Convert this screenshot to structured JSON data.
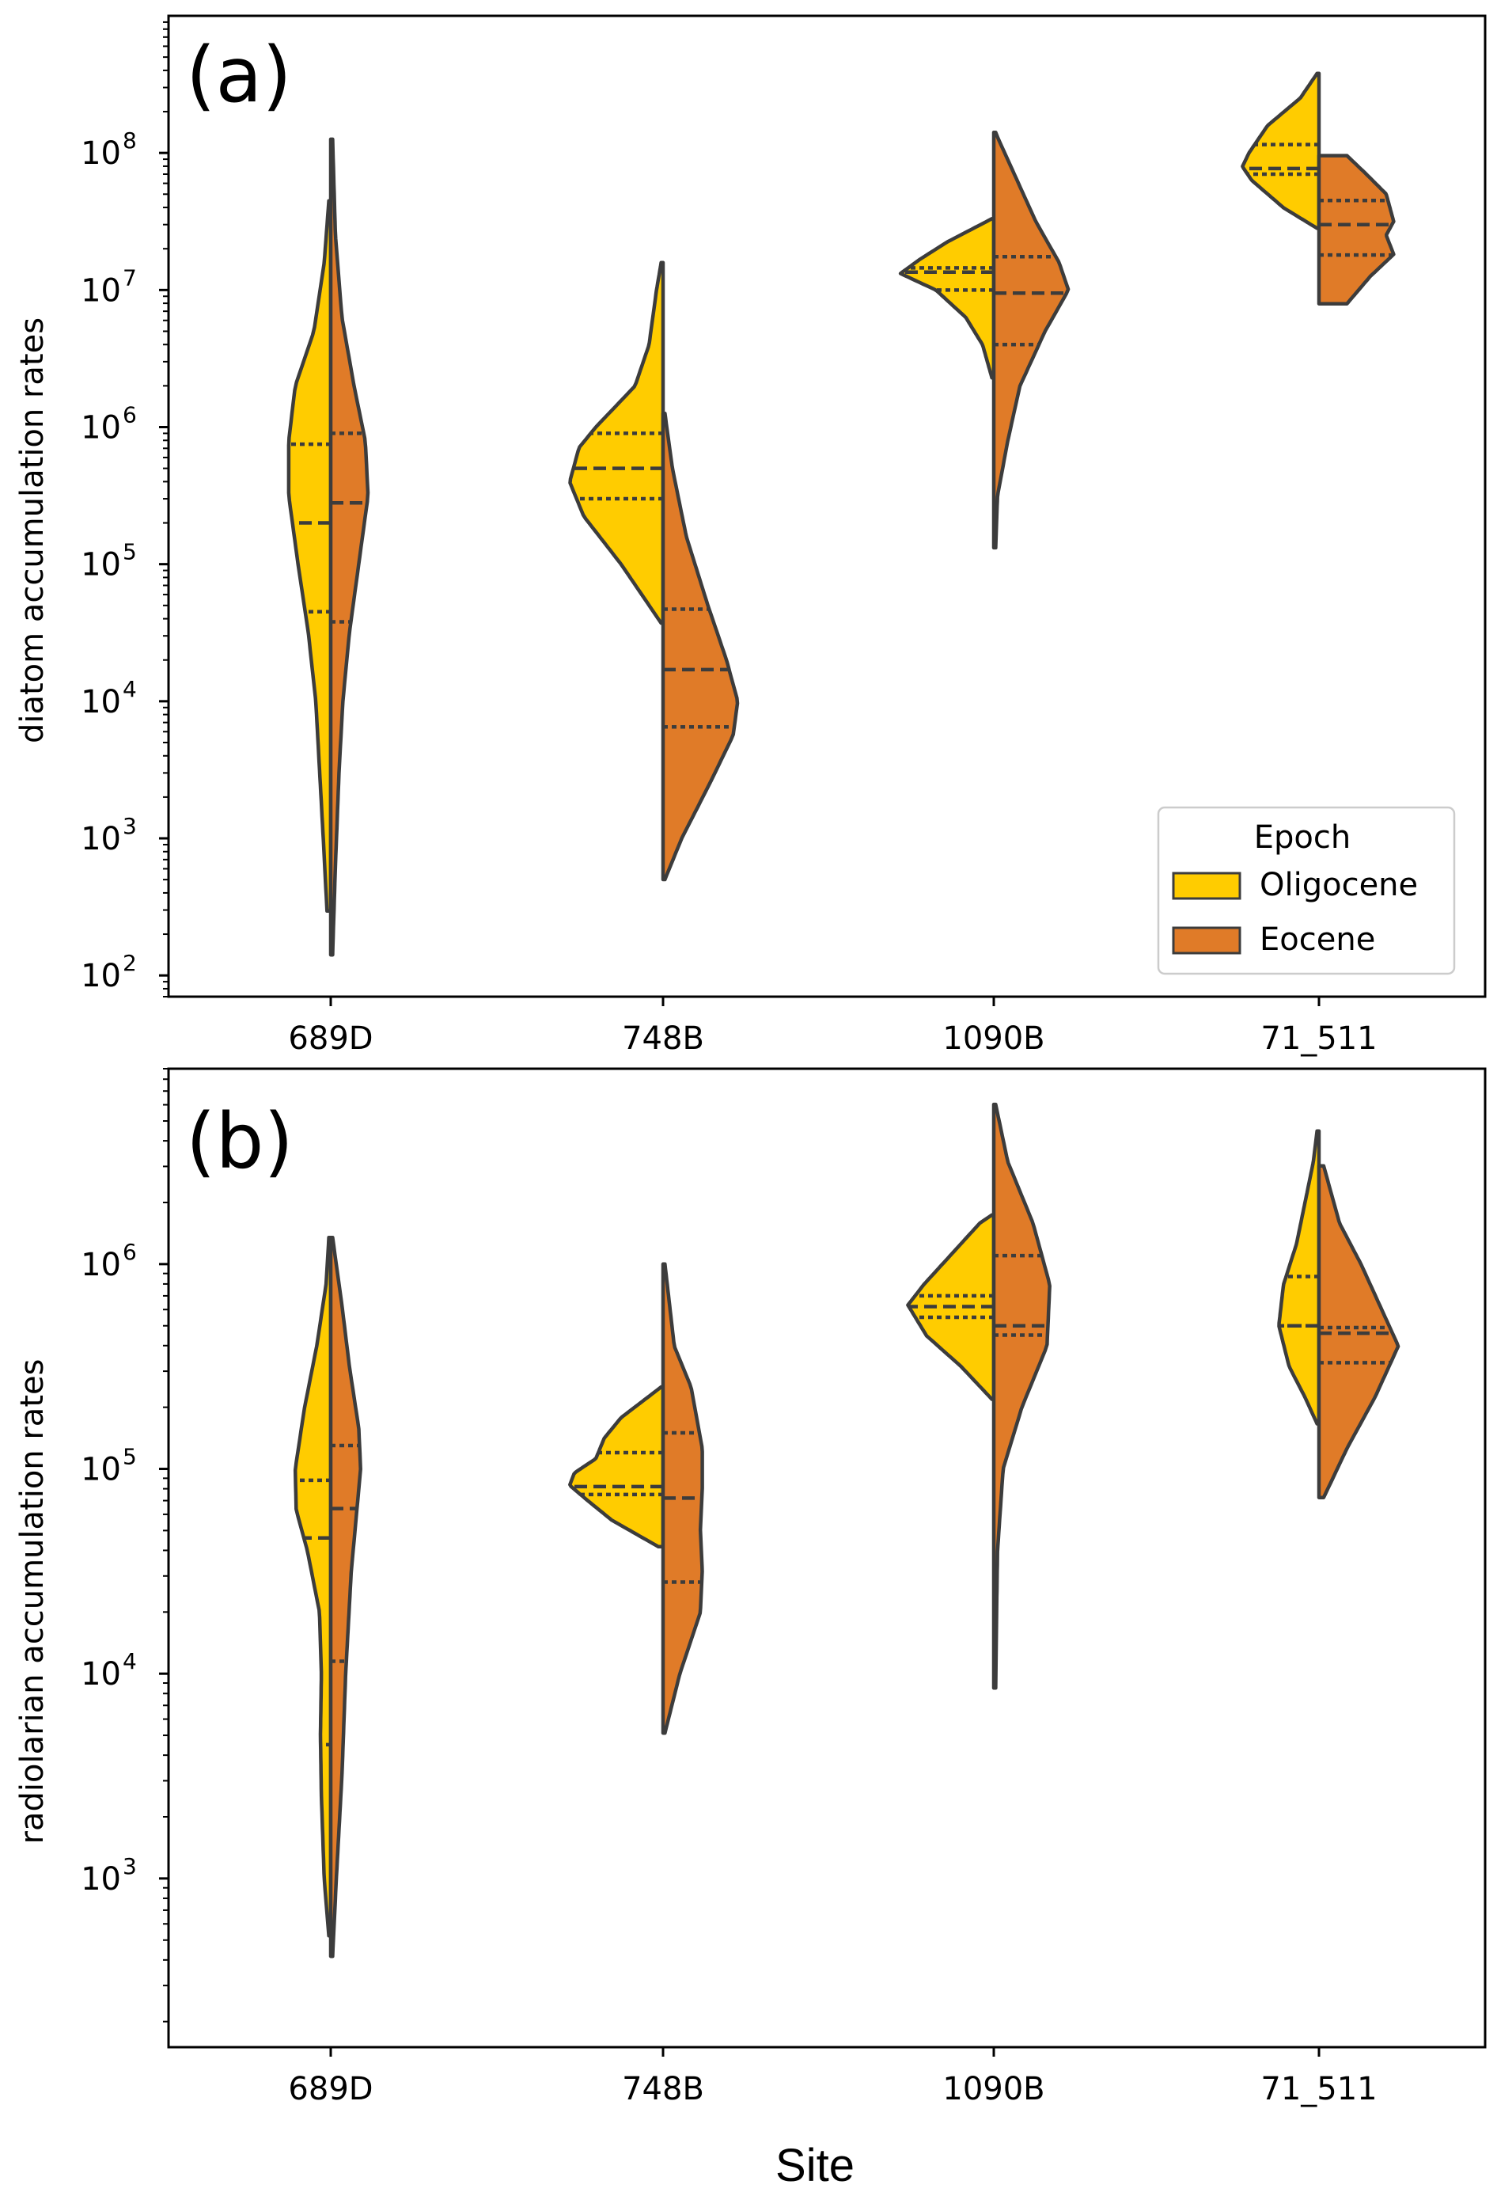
{
  "figure": {
    "xlabel": "Site"
  },
  "legend": {
    "title": "Epoch",
    "entries": [
      {
        "label": "Oligocene",
        "color": "#FFCC00"
      },
      {
        "label": "Eocene",
        "color": "#E07B28"
      }
    ]
  },
  "chart_data": [
    {
      "type": "violin",
      "panel_label": "(a)",
      "ylabel": "diatom accumulation rates",
      "yscale": "log",
      "ylim": [
        70,
        1000000000
      ],
      "yticks": [
        {
          "exp": 2,
          "base": "10",
          "sup": "2"
        },
        {
          "exp": 3,
          "base": "10",
          "sup": "3"
        },
        {
          "exp": 4,
          "base": "10",
          "sup": "4"
        },
        {
          "exp": 5,
          "base": "10",
          "sup": "5"
        },
        {
          "exp": 6,
          "base": "10",
          "sup": "6"
        },
        {
          "exp": 7,
          "base": "10",
          "sup": "7"
        },
        {
          "exp": 8,
          "base": "10",
          "sup": "8"
        }
      ],
      "categories": [
        "689D",
        "748B",
        "1090B",
        "71_511"
      ],
      "split_by": "Epoch",
      "series": [
        {
          "name": "Oligocene",
          "color": "#FFCC00",
          "violins": [
            {
              "min": 300,
              "max": 45000000,
              "q1": 45000,
              "median": 200000,
              "q3": 750000,
              "density": [
                [
                  2.47,
                  0.04
                ],
                [
                  3.0,
                  0.08
                ],
                [
                  3.5,
                  0.12
                ],
                [
                  4.0,
                  0.16
                ],
                [
                  4.5,
                  0.24
                ],
                [
                  5.0,
                  0.35
                ],
                [
                  5.5,
                  0.45
                ],
                [
                  5.9,
                  0.45
                ],
                [
                  6.3,
                  0.38
                ],
                [
                  6.7,
                  0.18
                ],
                [
                  7.2,
                  0.07
                ],
                [
                  7.65,
                  0.02
                ]
              ]
            },
            {
              "min": 37000,
              "max": 16000000,
              "q1": 300000,
              "median": 500000,
              "q3": 900000,
              "density": [
                [
                  4.57,
                  0.02
                ],
                [
                  5.0,
                  0.45
                ],
                [
                  5.35,
                  0.85
                ],
                [
                  5.6,
                  1.0
                ],
                [
                  5.85,
                  0.9
                ],
                [
                  6.0,
                  0.72
                ],
                [
                  6.3,
                  0.3
                ],
                [
                  6.6,
                  0.15
                ],
                [
                  7.0,
                  0.07
                ],
                [
                  7.2,
                  0.02
                ]
              ]
            },
            {
              "min": 2300000,
              "max": 33000000,
              "q1": 10000000,
              "median": 13500000,
              "q3": 14500000,
              "density": [
                [
                  6.36,
                  0.02
                ],
                [
                  6.6,
                  0.12
                ],
                [
                  6.8,
                  0.3
                ],
                [
                  7.0,
                  0.62
                ],
                [
                  7.12,
                  1.0
                ],
                [
                  7.22,
                  0.8
                ],
                [
                  7.35,
                  0.5
                ],
                [
                  7.52,
                  0.02
                ]
              ]
            },
            {
              "min": 28000000,
              "max": 380000000,
              "q1": 70000000,
              "median": 77000000,
              "q3": 115000000,
              "density": [
                [
                  7.45,
                  0.02
                ],
                [
                  7.6,
                  0.38
                ],
                [
                  7.8,
                  0.72
                ],
                [
                  7.9,
                  0.82
                ],
                [
                  8.0,
                  0.75
                ],
                [
                  8.2,
                  0.55
                ],
                [
                  8.4,
                  0.2
                ],
                [
                  8.58,
                  0.02
                ]
              ]
            }
          ]
        },
        {
          "name": "Eocene",
          "color": "#E07B28",
          "violins": [
            {
              "min": 140,
              "max": 130000000,
              "q1": 38000,
              "median": 280000,
              "q3": 900000,
              "density": [
                [
                  2.15,
                  0.02
                ],
                [
                  2.8,
                  0.05
                ],
                [
                  3.5,
                  0.09
                ],
                [
                  4.0,
                  0.13
                ],
                [
                  4.5,
                  0.2
                ],
                [
                  5.0,
                  0.3
                ],
                [
                  5.5,
                  0.4
                ],
                [
                  5.9,
                  0.37
                ],
                [
                  6.3,
                  0.25
                ],
                [
                  6.8,
                  0.12
                ],
                [
                  7.4,
                  0.05
                ],
                [
                  8.1,
                  0.02
                ]
              ]
            },
            {
              "min": 500,
              "max": 1300000,
              "q1": 6500,
              "median": 17000,
              "q3": 47000,
              "density": [
                [
                  2.7,
                  0.02
                ],
                [
                  3.0,
                  0.2
                ],
                [
                  3.4,
                  0.5
                ],
                [
                  3.75,
                  0.75
                ],
                [
                  4.0,
                  0.8
                ],
                [
                  4.3,
                  0.68
                ],
                [
                  4.7,
                  0.48
                ],
                [
                  5.2,
                  0.25
                ],
                [
                  5.7,
                  0.1
                ],
                [
                  6.1,
                  0.02
                ]
              ]
            },
            {
              "min": 130000,
              "max": 140000000,
              "q1": 4000000,
              "median": 9500000,
              "q3": 17500000,
              "density": [
                [
                  5.12,
                  0.02
                ],
                [
                  5.5,
                  0.04
                ],
                [
                  5.9,
                  0.15
                ],
                [
                  6.3,
                  0.28
                ],
                [
                  6.7,
                  0.55
                ],
                [
                  7.0,
                  0.8
                ],
                [
                  7.2,
                  0.7
                ],
                [
                  7.5,
                  0.45
                ],
                [
                  7.8,
                  0.25
                ],
                [
                  8.1,
                  0.05
                ],
                [
                  8.15,
                  0.02
                ]
              ]
            },
            {
              "min": 8000000,
              "max": 95000000,
              "q1": 18000000,
              "median": 30000000,
              "q3": 45000000,
              "density": [
                [
                  6.9,
                  0.3
                ],
                [
                  7.1,
                  0.55
                ],
                [
                  7.26,
                  0.8
                ],
                [
                  7.4,
                  0.72
                ],
                [
                  7.5,
                  0.8
                ],
                [
                  7.7,
                  0.72
                ],
                [
                  7.85,
                  0.5
                ],
                [
                  7.98,
                  0.3
                ]
              ]
            }
          ]
        }
      ]
    },
    {
      "type": "violin",
      "panel_label": "(b)",
      "ylabel": "radiolarian accumulation rates",
      "yscale": "log",
      "ylim": [
        150,
        9000000
      ],
      "yticks": [
        {
          "exp": 3,
          "base": "10",
          "sup": "3"
        },
        {
          "exp": 4,
          "base": "10",
          "sup": "4"
        },
        {
          "exp": 5,
          "base": "10",
          "sup": "5"
        },
        {
          "exp": 6,
          "base": "10",
          "sup": "6"
        }
      ],
      "categories": [
        "689D",
        "748B",
        "1090B",
        "71_511"
      ],
      "split_by": "Epoch",
      "series": [
        {
          "name": "Oligocene",
          "color": "#FFCC00",
          "violins": [
            {
              "min": 500,
              "max": 1350000,
              "q1": 4500,
              "median": 46000,
              "q3": 88000,
              "density": [
                [
                  2.72,
                  0.02
                ],
                [
                  3.0,
                  0.07
                ],
                [
                  3.4,
                  0.1
                ],
                [
                  3.7,
                  0.11
                ],
                [
                  4.0,
                  0.1
                ],
                [
                  4.3,
                  0.12
                ],
                [
                  4.6,
                  0.25
                ],
                [
                  4.8,
                  0.37
                ],
                [
                  5.0,
                  0.38
                ],
                [
                  5.3,
                  0.28
                ],
                [
                  5.6,
                  0.15
                ],
                [
                  5.9,
                  0.05
                ],
                [
                  6.13,
                  0.02
                ]
              ]
            },
            {
              "min": 42000,
              "max": 250000,
              "q1": 75000,
              "median": 82000,
              "q3": 120000,
              "density": [
                [
                  4.62,
                  0.05
                ],
                [
                  4.75,
                  0.55
                ],
                [
                  4.85,
                  0.82
                ],
                [
                  4.92,
                  1.0
                ],
                [
                  4.98,
                  0.95
                ],
                [
                  5.05,
                  0.72
                ],
                [
                  5.15,
                  0.63
                ],
                [
                  5.25,
                  0.45
                ],
                [
                  5.4,
                  0.02
                ]
              ]
            },
            {
              "min": 220000,
              "max": 1750000,
              "q1": 550000,
              "median": 620000,
              "q3": 700000,
              "density": [
                [
                  5.34,
                  0.02
                ],
                [
                  5.5,
                  0.35
                ],
                [
                  5.65,
                  0.72
                ],
                [
                  5.8,
                  0.92
                ],
                [
                  5.9,
                  0.75
                ],
                [
                  6.05,
                  0.45
                ],
                [
                  6.2,
                  0.15
                ],
                [
                  6.24,
                  0.02
                ]
              ]
            },
            {
              "min": 165000,
              "max": 4500000,
              "q1": 500000,
              "median": 500000,
              "q3": 870000,
              "density": [
                [
                  5.22,
                  0.02
                ],
                [
                  5.35,
                  0.15
                ],
                [
                  5.5,
                  0.32
                ],
                [
                  5.7,
                  0.43
                ],
                [
                  5.9,
                  0.38
                ],
                [
                  6.1,
                  0.24
                ],
                [
                  6.3,
                  0.15
                ],
                [
                  6.5,
                  0.06
                ],
                [
                  6.65,
                  0.02
                ]
              ]
            }
          ]
        },
        {
          "name": "Eocene",
          "color": "#E07B28",
          "violins": [
            {
              "min": 400,
              "max": 1350000,
              "q1": 11500,
              "median": 64000,
              "q3": 130000,
              "density": [
                [
                  2.62,
                  0.02
                ],
                [
                  3.0,
                  0.06
                ],
                [
                  3.5,
                  0.12
                ],
                [
                  4.0,
                  0.16
                ],
                [
                  4.5,
                  0.22
                ],
                [
                  4.8,
                  0.28
                ],
                [
                  5.0,
                  0.32
                ],
                [
                  5.2,
                  0.3
                ],
                [
                  5.5,
                  0.2
                ],
                [
                  5.8,
                  0.12
                ],
                [
                  6.13,
                  0.02
                ]
              ]
            },
            {
              "min": 5100,
              "max": 1000000,
              "q1": 28000,
              "median": 72000,
              "q3": 150000,
              "density": [
                [
                  3.71,
                  0.02
                ],
                [
                  4.0,
                  0.18
                ],
                [
                  4.3,
                  0.4
                ],
                [
                  4.5,
                  0.42
                ],
                [
                  4.7,
                  0.4
                ],
                [
                  4.9,
                  0.42
                ],
                [
                  5.1,
                  0.42
                ],
                [
                  5.4,
                  0.3
                ],
                [
                  5.6,
                  0.12
                ],
                [
                  6.0,
                  0.02
                ]
              ]
            },
            {
              "min": 8500,
              "max": 6000000,
              "q1": 450000,
              "median": 500000,
              "q3": 1100000,
              "density": [
                [
                  3.93,
                  0.02
                ],
                [
                  4.3,
                  0.03
                ],
                [
                  4.6,
                  0.04
                ],
                [
                  5.0,
                  0.1
                ],
                [
                  5.3,
                  0.3
                ],
                [
                  5.6,
                  0.57
                ],
                [
                  5.9,
                  0.6
                ],
                [
                  6.2,
                  0.42
                ],
                [
                  6.5,
                  0.15
                ],
                [
                  6.78,
                  0.02
                ]
              ]
            },
            {
              "min": 73000,
              "max": 3000000,
              "q1": 330000,
              "median": 460000,
              "q3": 490000,
              "density": [
                [
                  4.86,
                  0.05
                ],
                [
                  5.1,
                  0.3
                ],
                [
                  5.35,
                  0.6
                ],
                [
                  5.6,
                  0.85
                ],
                [
                  5.8,
                  0.65
                ],
                [
                  6.0,
                  0.45
                ],
                [
                  6.2,
                  0.22
                ],
                [
                  6.48,
                  0.05
                ]
              ]
            }
          ]
        }
      ]
    }
  ]
}
